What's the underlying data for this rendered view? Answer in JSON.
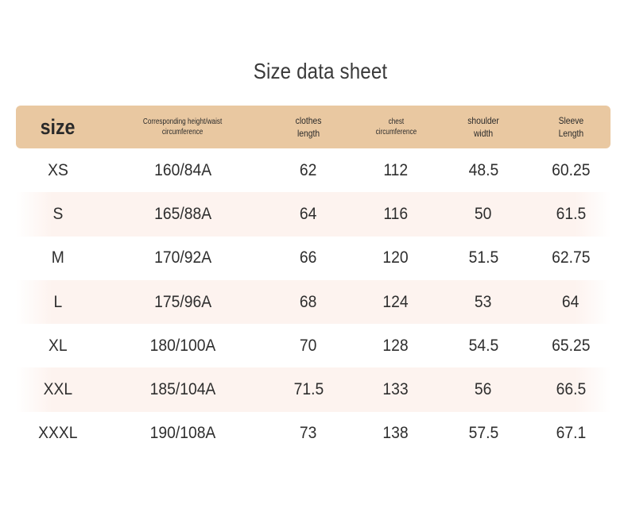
{
  "title": "Size data sheet",
  "header": {
    "size": "size",
    "height_waist": "Corresponding height/waist\ncircumference",
    "clothes_length": "clothes\nlength",
    "chest": "chest\ncircumference",
    "shoulder": "shoulder\nwidth",
    "sleeve": "Sleeve\nLength"
  },
  "colors": {
    "header_bg": "#e9c8a1",
    "alt_row_bg": "#fdf3ef"
  },
  "rows": [
    {
      "size": "XS",
      "height_waist": "160/84A",
      "clothes_length": "62",
      "chest": "112",
      "shoulder": "48.5",
      "sleeve": "60.25"
    },
    {
      "size": "S",
      "height_waist": "165/88A",
      "clothes_length": "64",
      "chest": "116",
      "shoulder": "50",
      "sleeve": "61.5"
    },
    {
      "size": "M",
      "height_waist": "170/92A",
      "clothes_length": "66",
      "chest": "120",
      "shoulder": "51.5",
      "sleeve": "62.75"
    },
    {
      "size": "L",
      "height_waist": "175/96A",
      "clothes_length": "68",
      "chest": "124",
      "shoulder": "53",
      "sleeve": "64"
    },
    {
      "size": "XL",
      "height_waist": "180/100A",
      "clothes_length": "70",
      "chest": "128",
      "shoulder": "54.5",
      "sleeve": "65.25"
    },
    {
      "size": "XXL",
      "height_waist": "185/104A",
      "clothes_length": "71.5",
      "chest": "133",
      "shoulder": "56",
      "sleeve": "66.5"
    },
    {
      "size": "XXXL",
      "height_waist": "190/108A",
      "clothes_length": "73",
      "chest": "138",
      "shoulder": "57.5",
      "sleeve": "67.1"
    }
  ]
}
